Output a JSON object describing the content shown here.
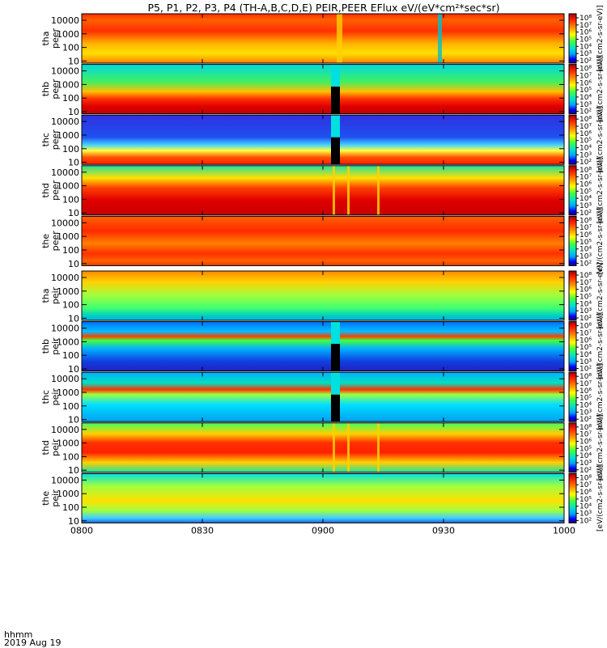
{
  "title": "P5, P1, P2, P3, P4 (TH-A,B,C,D,E) PEIR,PEER EFlux eV/(eV*cm²*sec*sr)",
  "chart_data": {
    "type": "heatmap",
    "x_tick_labels": [
      "0800",
      "0830",
      "0900",
      "0930",
      "1000"
    ],
    "x_axis_label": "hhmm",
    "date_label": "2019 Aug 19",
    "y_tick_labels": [
      "10",
      "100",
      "1000",
      "10000"
    ],
    "y_scale": "log",
    "ylim": [
      7,
      30000
    ],
    "colorbar_tick_labels": [
      "10²",
      "10³",
      "10⁴",
      "10⁵",
      "10⁶",
      "10⁷",
      "10⁸"
    ],
    "colorbar_label": "[eV/(cm2-s-sr-eV)]",
    "colormap": [
      "#1a0070",
      "#0000ff",
      "#00bfff",
      "#00e0c0",
      "#40ff40",
      "#ffff00",
      "#ff8000",
      "#e80000",
      "#a00000"
    ],
    "panels": [
      {
        "probe": "tha",
        "species": "peer",
        "label_line1": "tha",
        "label_line2": "peer"
      },
      {
        "probe": "thb",
        "species": "peer",
        "label_line1": "thb",
        "label_line2": "peer"
      },
      {
        "probe": "thc",
        "species": "peer",
        "label_line1": "thc",
        "label_line2": "peer"
      },
      {
        "probe": "thd",
        "species": "peer",
        "label_line1": "thd",
        "label_line2": "peer"
      },
      {
        "probe": "the",
        "species": "peer",
        "label_line1": "the",
        "label_line2": "peer"
      },
      {
        "probe": "tha",
        "species": "peir",
        "label_line1": "tha",
        "label_line2": "peir"
      },
      {
        "probe": "thb",
        "species": "peir",
        "label_line1": "thb",
        "label_line2": "peir"
      },
      {
        "probe": "thc",
        "species": "peir",
        "label_line1": "thc",
        "label_line2": "peir"
      },
      {
        "probe": "thd",
        "species": "peir",
        "label_line1": "thd",
        "label_line2": "peir"
      },
      {
        "probe": "the",
        "species": "peir",
        "label_line1": "the",
        "label_line2": "peir"
      }
    ]
  }
}
